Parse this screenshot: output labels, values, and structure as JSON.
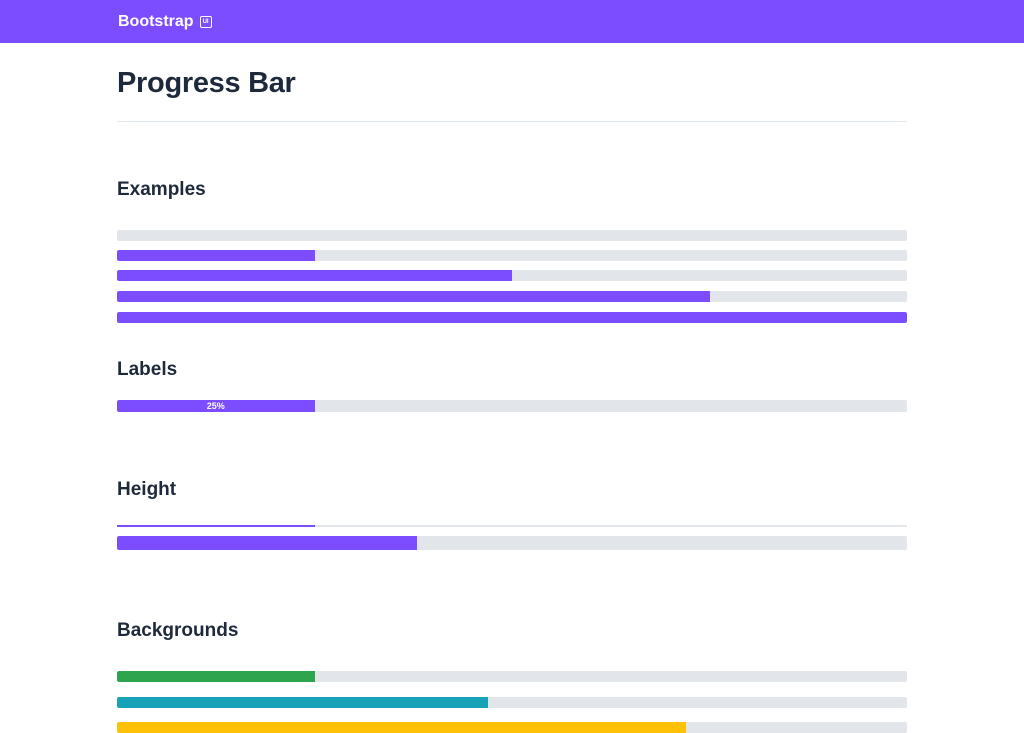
{
  "navbar": {
    "brand": "Bootstrap",
    "badge": "UI",
    "color": "#7c4dff"
  },
  "page": {
    "title": "Progress Bar"
  },
  "sections": {
    "examples": {
      "title": "Examples",
      "bars": [
        {
          "value": 0
        },
        {
          "value": 25
        },
        {
          "value": 50
        },
        {
          "value": 75
        },
        {
          "value": 100
        }
      ]
    },
    "labels": {
      "title": "Labels",
      "bar": {
        "value": 25,
        "label": "25%"
      }
    },
    "height": {
      "title": "Height",
      "bars": [
        {
          "value": 25
        },
        {
          "value": 38
        }
      ]
    },
    "backgrounds": {
      "title": "Backgrounds",
      "bars": [
        {
          "value": 25,
          "color": "#2ea44f"
        },
        {
          "value": 47,
          "color": "#17a2b8"
        },
        {
          "value": 72,
          "color": "#ffc107"
        }
      ]
    }
  },
  "colors": {
    "primary": "#7c4dff",
    "track": "#e2e5ea",
    "success": "#2ea44f",
    "info": "#17a2b8",
    "warning": "#ffc107"
  }
}
